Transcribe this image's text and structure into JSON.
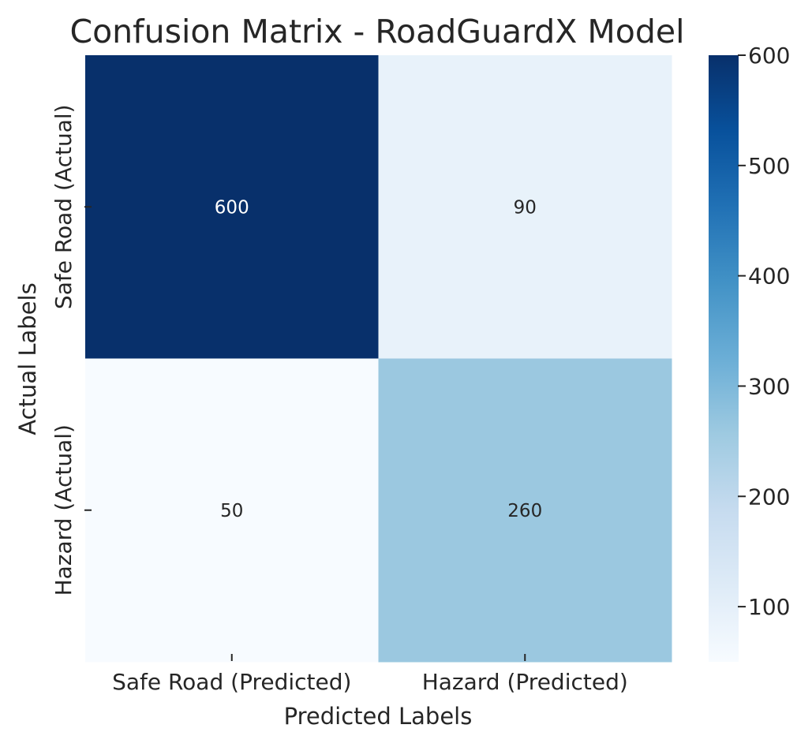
{
  "chart_data": {
    "type": "heatmap",
    "title": "Confusion Matrix - RoadGuardX Model",
    "xlabel": "Predicted Labels",
    "ylabel": "Actual Labels",
    "x_categories": [
      "Safe Road (Predicted)",
      "Hazard (Predicted)"
    ],
    "y_categories": [
      "Safe Road (Actual)",
      "Hazard (Actual)"
    ],
    "values": [
      [
        600,
        90
      ],
      [
        50,
        260
      ]
    ],
    "colormap": "Blues",
    "colormap_stops": [
      "#f7fbff",
      "#deebf7",
      "#c6dbef",
      "#9ecae1",
      "#6baed6",
      "#4292c6",
      "#2171b5",
      "#08519c",
      "#08306b"
    ],
    "colorbar": {
      "range": [
        50,
        600
      ],
      "ticks": [
        100,
        200,
        300,
        400,
        500,
        600
      ],
      "tick_labels": [
        "100",
        "200",
        "300",
        "400",
        "500",
        "600"
      ]
    }
  }
}
